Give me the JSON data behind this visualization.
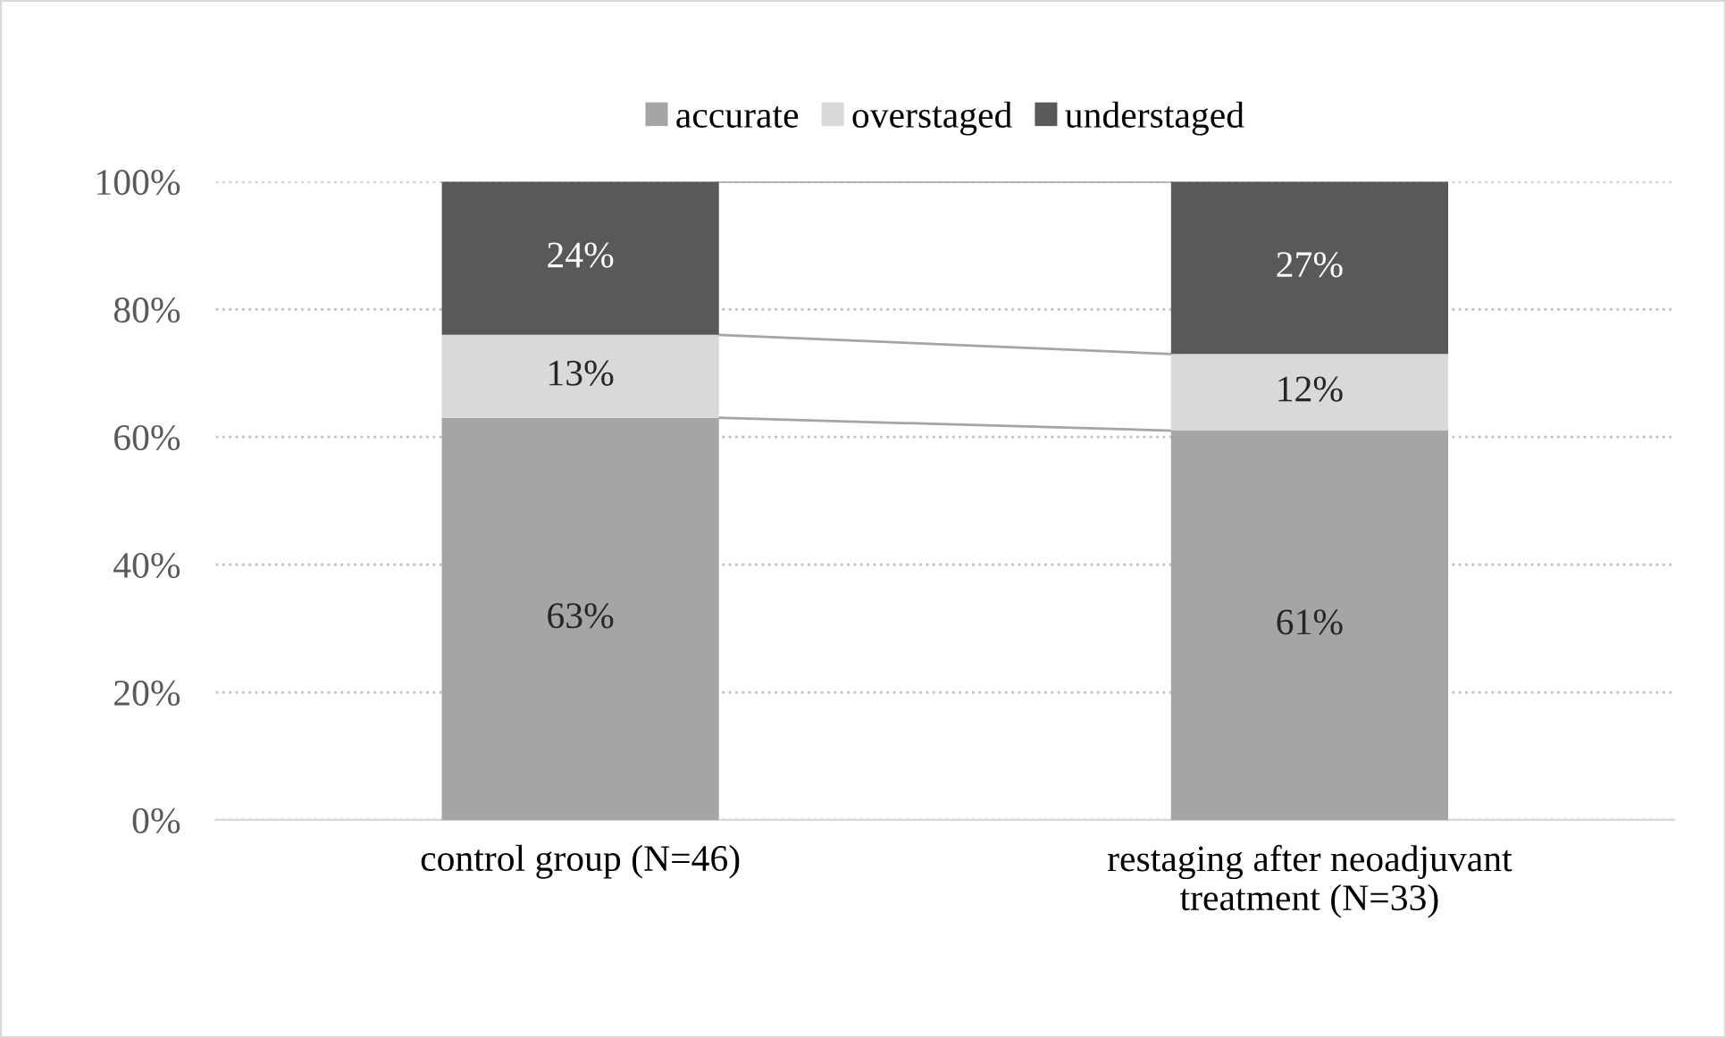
{
  "chart_data": {
    "type": "bar",
    "stacked": true,
    "categories": [
      "control group (N=46)",
      "restaging after neoadjuvant\ntreatment (N=33)"
    ],
    "series": [
      {
        "name": "accurate",
        "color": "#a5a5a5",
        "values": [
          63,
          61
        ],
        "value_labels": [
          "63%",
          "61%"
        ]
      },
      {
        "name": "overstaged",
        "color": "#d9d9d9",
        "values": [
          13,
          12
        ],
        "value_labels": [
          "13%",
          "12%"
        ]
      },
      {
        "name": "understaged",
        "color": "#595959",
        "values": [
          24,
          27
        ],
        "value_labels": [
          "24%",
          "27%"
        ]
      }
    ],
    "ylim": [
      0,
      100
    ],
    "yticks": [
      {
        "value": 0,
        "label": "0%"
      },
      {
        "value": 20,
        "label": "20%"
      },
      {
        "value": 40,
        "label": "40%"
      },
      {
        "value": 60,
        "label": "60%"
      },
      {
        "value": 80,
        "label": "80%"
      },
      {
        "value": 100,
        "label": "100%"
      }
    ],
    "grid": "y",
    "legend": "top"
  }
}
